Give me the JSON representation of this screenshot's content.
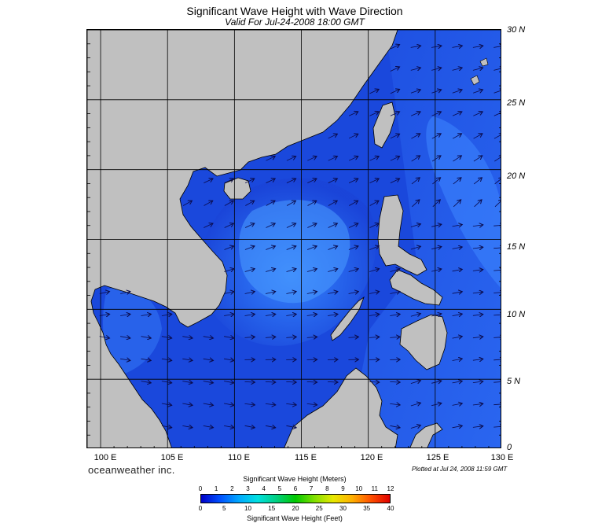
{
  "title": "Significant Wave Height with Wave Direction",
  "subtitle": "Valid For Jul-24-2008 18:00 GMT",
  "map": {
    "lon_range": [
      99,
      130
    ],
    "lat_range": [
      0,
      30
    ],
    "lat_labels": [
      "30 N",
      "25 N",
      "20 N",
      "15 N",
      "10 N",
      "5 N",
      "0"
    ],
    "lat_values": [
      30,
      25,
      20,
      15,
      10,
      5,
      0
    ],
    "lon_labels": [
      "100 E",
      "105 E",
      "110 E",
      "115 E",
      "120 E",
      "125 E",
      "130 E"
    ],
    "lon_values": [
      100,
      105,
      110,
      115,
      120,
      125,
      130
    ],
    "colors": {
      "land": "#c0c0c0",
      "grid": "#000000",
      "arrow": "#0a0a4a"
    }
  },
  "brand": "oceanweather inc.",
  "plotted": "Plotted at Jul 24, 2008 11:59 GMT",
  "colorbar": {
    "title_meters": "Significant Wave Height (Meters)",
    "title_feet": "Significant Wave Height (Feet)",
    "meters_ticks": [
      "0",
      "1",
      "2",
      "3",
      "4",
      "5",
      "6",
      "7",
      "8",
      "9",
      "10",
      "11",
      "12"
    ],
    "feet_ticks": [
      "0",
      "5",
      "10",
      "15",
      "20",
      "25",
      "30",
      "35",
      "40"
    ],
    "colors": [
      "#0000c8",
      "#0050ff",
      "#00a8ff",
      "#00e0e0",
      "#00d080",
      "#00c800",
      "#80e000",
      "#e8e800",
      "#ffb000",
      "#ff5000",
      "#e00000"
    ]
  }
}
